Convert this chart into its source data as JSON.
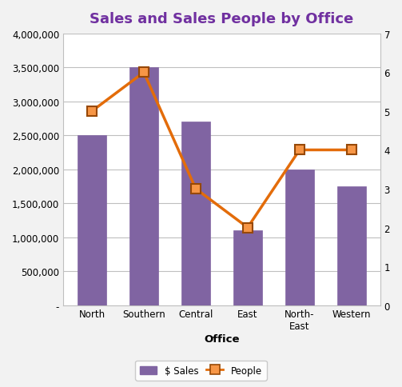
{
  "title": "Sales and Sales People by Office",
  "title_color": "#7030A0",
  "categories": [
    "North",
    "Southern",
    "Central",
    "East",
    "North-\nEast",
    "Western"
  ],
  "xlabel": "Office",
  "sales": [
    2500000,
    3500000,
    2700000,
    1100000,
    2000000,
    1750000
  ],
  "people": [
    5,
    6,
    3,
    2,
    4,
    4
  ],
  "bar_color": "#8064A2",
  "bar_edgecolor": "#8064A2",
  "line_color": "#E36C0A",
  "line_marker": "s",
  "marker_facecolor": "#F79646",
  "marker_edgecolor": "#974806",
  "marker_size": 9,
  "line_width": 2.5,
  "ylim_left": [
    0,
    4000000
  ],
  "ylim_right": [
    0,
    7
  ],
  "yticks_left": [
    0,
    500000,
    1000000,
    1500000,
    2000000,
    2500000,
    3000000,
    3500000,
    4000000
  ],
  "yticks_right": [
    0,
    1,
    2,
    3,
    4,
    5,
    6,
    7
  ],
  "ytick_labels_left": [
    "-",
    "500,000",
    "1,000,000",
    "1,500,000",
    "2,000,000",
    "2,500,000",
    "3,000,000",
    "3,500,000",
    "4,000,000"
  ],
  "legend_labels": [
    "$ Sales",
    "People"
  ],
  "background_color": "#F2F2F2",
  "plot_background": "#FFFFFF",
  "grid_color": "#BFBFBF",
  "figsize": [
    5.03,
    4.85
  ],
  "dpi": 100
}
